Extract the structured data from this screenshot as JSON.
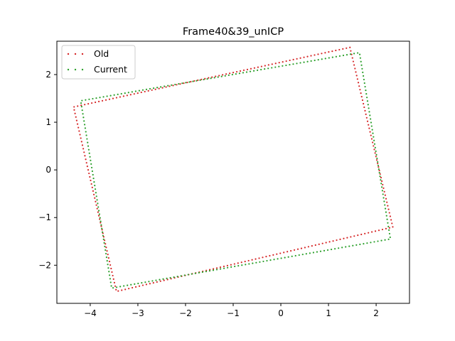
{
  "chart_data": {
    "type": "scatter",
    "title": "Frame40&39_unICP",
    "xlabel": "",
    "ylabel": "",
    "xlim": [
      -4.7,
      2.7
    ],
    "ylim": [
      -2.8,
      2.7
    ],
    "xticks": [
      -4,
      -3,
      -2,
      -1,
      0,
      1,
      2
    ],
    "yticks": [
      -2,
      -1,
      0,
      1,
      2
    ],
    "xtick_labels": [
      "−4",
      "−3",
      "−2",
      "−1",
      "0",
      "1",
      "2"
    ],
    "ytick_labels": [
      "−2",
      "−1",
      "0",
      "1",
      "2"
    ],
    "grid": false,
    "legend_position": "top-left",
    "series": [
      {
        "name": "Old",
        "color": "#d62728",
        "corners": [
          [
            1.45,
            2.57
          ],
          [
            2.35,
            -1.2
          ],
          [
            -3.45,
            -2.55
          ],
          [
            -4.35,
            1.32
          ]
        ],
        "outline_points": 260
      },
      {
        "name": "Current",
        "color": "#2ca02c",
        "corners": [
          [
            1.65,
            2.46
          ],
          [
            2.3,
            -1.45
          ],
          [
            -3.55,
            -2.48
          ],
          [
            -4.2,
            1.45
          ]
        ],
        "outline_points": 260
      }
    ]
  }
}
